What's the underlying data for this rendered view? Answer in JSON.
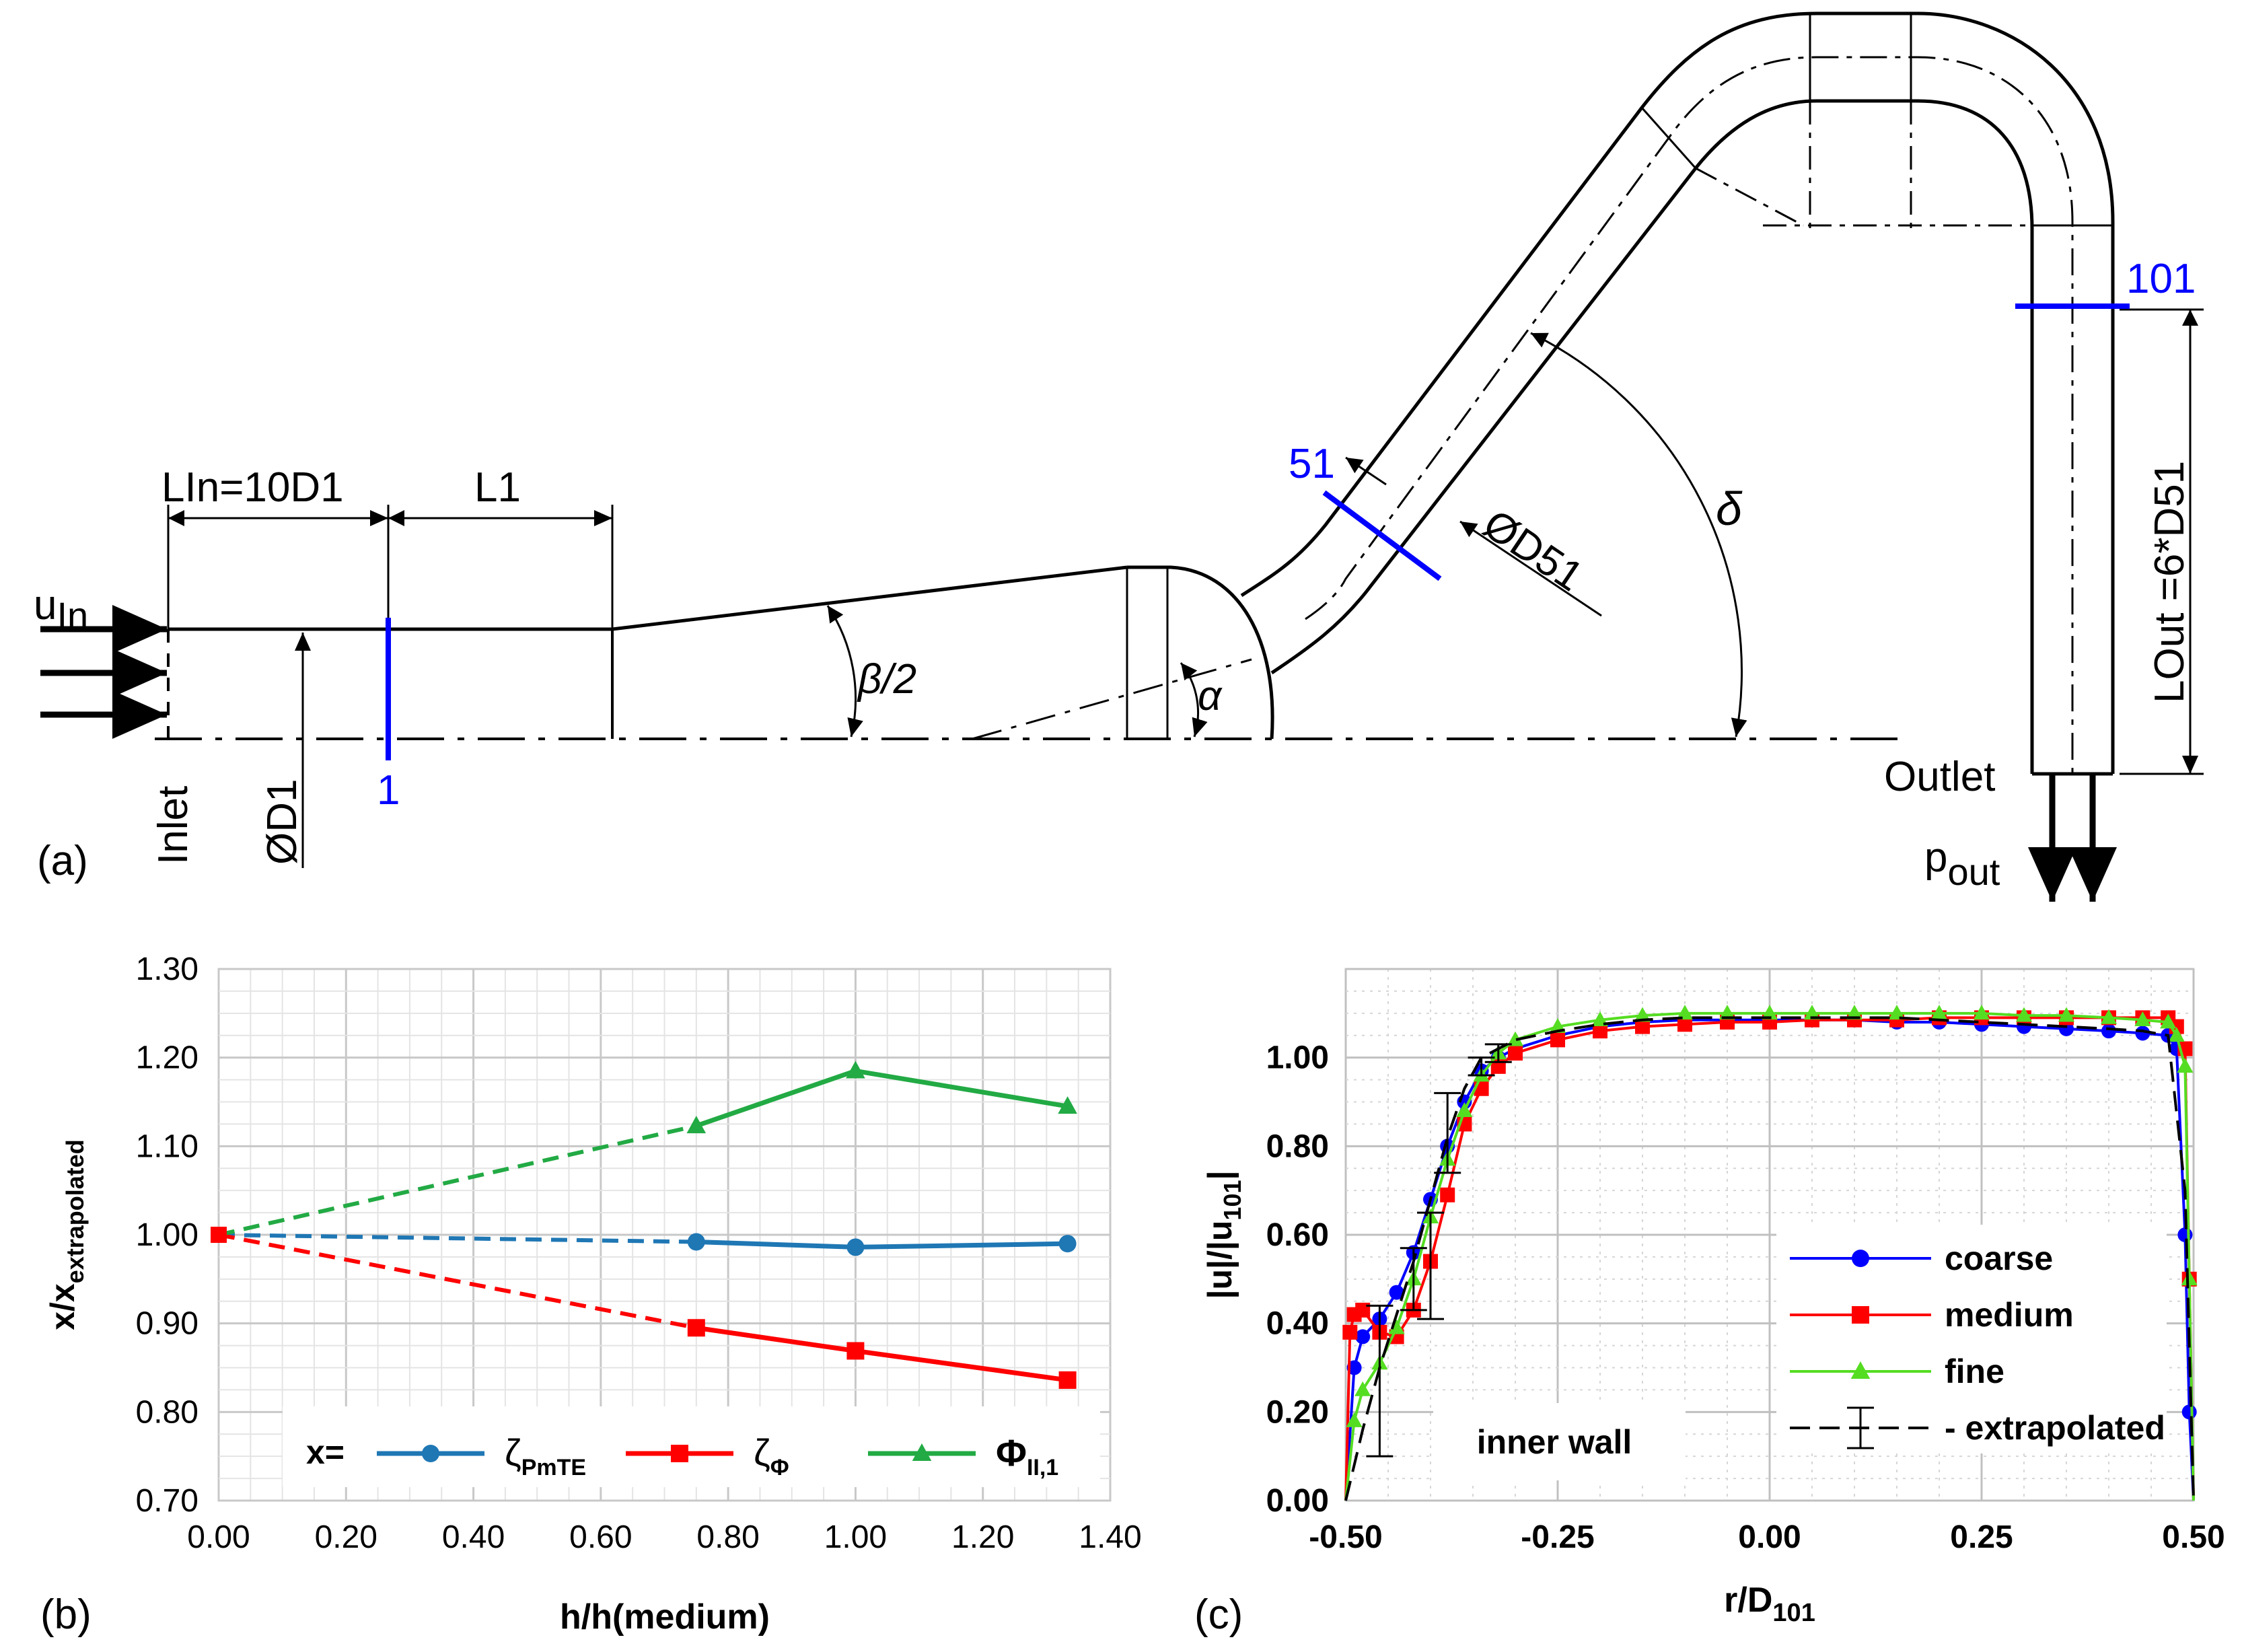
{
  "panel_a": {
    "panel_label": "(a)",
    "u_in_main": "u",
    "u_in_sub": "In",
    "lin_label": "LIn=10D1",
    "l1_label": "L1",
    "inlet_label": "Inlet",
    "d1_label": "ØD1",
    "section_1": "1",
    "beta_label": "β/2",
    "alpha_label": "α",
    "section_51": "51",
    "d51_label": "ØD51",
    "delta_label": "δ",
    "section_101": "101",
    "lout_label": "LOut =6*D51",
    "outlet_label": "Outlet",
    "p_out_main": "p",
    "p_out_sub": "out",
    "colors": {
      "geometry": "#000000",
      "section": "#0000ff"
    }
  },
  "chart_data": [
    {
      "id": "b",
      "panel_label": "(b)",
      "type": "line",
      "xlabel": "h/h(medium)",
      "ylabel_main": "x/x",
      "ylabel_sub": "extrapolated",
      "xlim": [
        0,
        1.4
      ],
      "ylim": [
        0.7,
        1.3
      ],
      "xticks": [
        "0.00",
        "0.20",
        "0.40",
        "0.60",
        "0.80",
        "1.00",
        "1.20",
        "1.40"
      ],
      "yticks": [
        "0.70",
        "0.80",
        "0.90",
        "1.00",
        "1.10",
        "1.20",
        "1.30"
      ],
      "grid": true,
      "legend_prefix": "x=",
      "legend_position": "bottom",
      "series": [
        {
          "name": "ζ",
          "sub": "PmTE",
          "color": "#1f77b4",
          "marker": "circle",
          "x": [
            0.75,
            1.0,
            1.333
          ],
          "y": [
            0.992,
            0.986,
            0.99
          ],
          "extrap_from": [
            0.0,
            1.0
          ]
        },
        {
          "name": "ζ",
          "sub": "Φ",
          "color": "#ff0000",
          "marker": "square",
          "x": [
            0.75,
            1.0,
            1.333
          ],
          "y": [
            0.895,
            0.869,
            0.836
          ],
          "extrap_from": [
            0.0,
            1.0
          ]
        },
        {
          "name": "Φ",
          "sub": "II,1",
          "color": "#22aa44",
          "marker": "triangle",
          "x": [
            0.75,
            1.0,
            1.333
          ],
          "y": [
            1.123,
            1.185,
            1.145
          ],
          "extrap_from": [
            0.0,
            1.0
          ]
        }
      ]
    },
    {
      "id": "c",
      "panel_label": "(c)",
      "type": "line",
      "xlabel_main": "r/D",
      "xlabel_sub": "101",
      "ylabel_main": "|u|/|u",
      "ylabel_sub": "101",
      "ylabel_end": "|",
      "xlim": [
        -0.5,
        0.5
      ],
      "ylim": [
        0,
        1.2
      ],
      "xticks": [
        "-0.50",
        "-0.25",
        "0.00",
        "0.25",
        "0.50"
      ],
      "yticks": [
        "0.00",
        "0.20",
        "0.40",
        "0.60",
        "0.80",
        "1.00"
      ],
      "grid": true,
      "annotation": "inner wall",
      "legend_position": "center-right",
      "series": [
        {
          "name": "coarse",
          "color": "#0000ff",
          "marker": "circle",
          "x": [
            -0.5,
            -0.49,
            -0.48,
            -0.46,
            -0.44,
            -0.42,
            -0.4,
            -0.38,
            -0.36,
            -0.34,
            -0.32,
            -0.3,
            -0.25,
            -0.2,
            -0.15,
            -0.1,
            -0.05,
            0,
            0.05,
            0.1,
            0.15,
            0.2,
            0.25,
            0.3,
            0.35,
            0.4,
            0.44,
            0.47,
            0.48,
            0.49,
            0.495,
            0.5
          ],
          "y": [
            0,
            0.3,
            0.37,
            0.41,
            0.47,
            0.56,
            0.68,
            0.8,
            0.9,
            0.97,
            1.0,
            1.02,
            1.05,
            1.07,
            1.08,
            1.085,
            1.085,
            1.085,
            1.085,
            1.085,
            1.08,
            1.08,
            1.075,
            1.07,
            1.065,
            1.06,
            1.055,
            1.05,
            1.02,
            0.6,
            0.2,
            0
          ]
        },
        {
          "name": "medium",
          "color": "#ff0000",
          "marker": "square",
          "x": [
            -0.5,
            -0.495,
            -0.49,
            -0.48,
            -0.46,
            -0.44,
            -0.42,
            -0.4,
            -0.38,
            -0.36,
            -0.34,
            -0.32,
            -0.3,
            -0.25,
            -0.2,
            -0.15,
            -0.1,
            -0.05,
            0,
            0.05,
            0.1,
            0.15,
            0.2,
            0.25,
            0.3,
            0.35,
            0.4,
            0.44,
            0.47,
            0.48,
            0.49,
            0.495,
            0.5
          ],
          "y": [
            0,
            0.38,
            0.42,
            0.43,
            0.38,
            0.37,
            0.43,
            0.54,
            0.69,
            0.85,
            0.93,
            0.98,
            1.01,
            1.04,
            1.06,
            1.07,
            1.075,
            1.08,
            1.08,
            1.085,
            1.085,
            1.085,
            1.09,
            1.09,
            1.09,
            1.09,
            1.09,
            1.09,
            1.09,
            1.07,
            1.02,
            0.5,
            0
          ]
        },
        {
          "name": "fine",
          "color": "#55dd22",
          "marker": "triangle",
          "x": [
            -0.5,
            -0.49,
            -0.48,
            -0.46,
            -0.44,
            -0.42,
            -0.4,
            -0.38,
            -0.36,
            -0.34,
            -0.32,
            -0.3,
            -0.25,
            -0.2,
            -0.15,
            -0.1,
            -0.05,
            0,
            0.05,
            0.1,
            0.15,
            0.2,
            0.25,
            0.3,
            0.35,
            0.4,
            0.44,
            0.47,
            0.48,
            0.49,
            0.495,
            0.5
          ],
          "y": [
            0,
            0.18,
            0.25,
            0.31,
            0.39,
            0.5,
            0.64,
            0.77,
            0.88,
            0.96,
            1.01,
            1.04,
            1.07,
            1.085,
            1.095,
            1.1,
            1.1,
            1.1,
            1.1,
            1.1,
            1.1,
            1.1,
            1.1,
            1.095,
            1.095,
            1.09,
            1.085,
            1.08,
            1.05,
            0.98,
            0.5,
            0
          ]
        },
        {
          "name": "extrapolated",
          "color": "#000000",
          "marker": "errorbar",
          "x": [
            -0.5,
            -0.48,
            -0.46,
            -0.44,
            -0.42,
            -0.4,
            -0.38,
            -0.36,
            -0.34,
            -0.32,
            -0.3,
            -0.25,
            -0.2,
            -0.15,
            -0.1,
            -0.05,
            0,
            0.05,
            0.1,
            0.15,
            0.2,
            0.25,
            0.3,
            0.35,
            0.4,
            0.44,
            0.47,
            0.49,
            0.5
          ],
          "y": [
            0,
            0.16,
            0.3,
            0.42,
            0.54,
            0.68,
            0.82,
            0.93,
            1.0,
            1.02,
            1.04,
            1.06,
            1.075,
            1.085,
            1.09,
            1.09,
            1.09,
            1.09,
            1.09,
            1.09,
            1.085,
            1.08,
            1.075,
            1.07,
            1.065,
            1.06,
            1.05,
            0.7,
            0
          ],
          "errorbars": [
            {
              "x": -0.46,
              "y": 0.27,
              "err": 0.17
            },
            {
              "x": -0.42,
              "y": 0.5,
              "err": 0.07
            },
            {
              "x": -0.4,
              "y": 0.53,
              "err": 0.12
            },
            {
              "x": -0.38,
              "y": 0.83,
              "err": 0.09
            },
            {
              "x": -0.34,
              "y": 0.98,
              "err": 0.02
            },
            {
              "x": -0.32,
              "y": 1.01,
              "err": 0.02
            }
          ]
        }
      ]
    }
  ]
}
